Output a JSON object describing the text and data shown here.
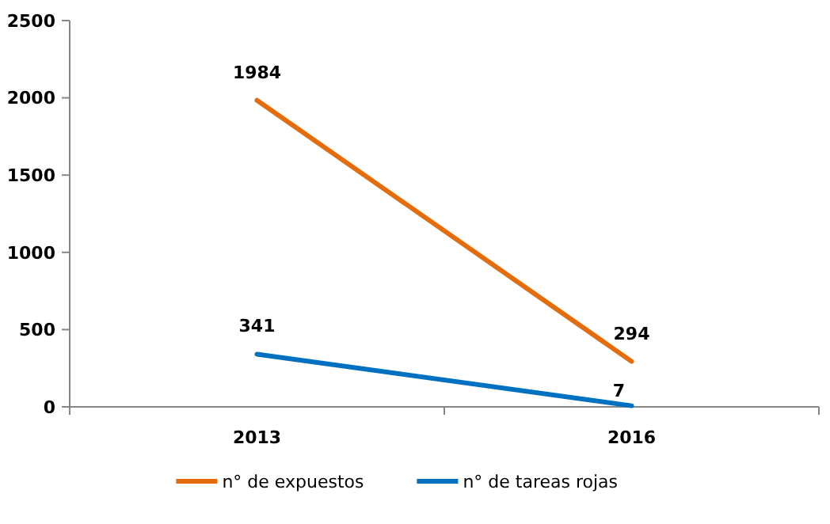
{
  "chart_data": {
    "type": "line",
    "categories": [
      "2013",
      "2016"
    ],
    "series": [
      {
        "name": "n° de expuestos",
        "color": "#e46c0a",
        "values": [
          1984,
          294
        ]
      },
      {
        "name": "n° de tareas rojas",
        "color": "#0070c0",
        "values": [
          341,
          7
        ]
      }
    ],
    "ylim": [
      0,
      2500
    ],
    "yticks": [
      0,
      500,
      1000,
      1500,
      2000,
      2500
    ],
    "grid": false,
    "legend": "bottom",
    "data_labels": true,
    "marker": "none",
    "line_style": "solid"
  }
}
